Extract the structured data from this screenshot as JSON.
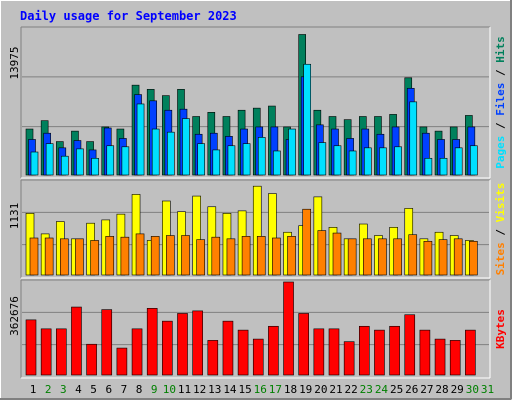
{
  "title": "Daily usage for September 2023",
  "colors": {
    "background": "#c0c0c0",
    "title": "#0000ff",
    "hits": "#00805c",
    "files": "#0040ff",
    "pages": "#00e0ff",
    "visits": "#ffff00",
    "sites": "#ff8000",
    "kbytes": "#ff0000"
  },
  "chart_data": [
    {
      "type": "bar",
      "title": "Daily usage for September 2023",
      "panel": "requests",
      "ylabel_parts": [
        "Pages",
        "Files",
        "Hits"
      ],
      "ymax_label": "13975",
      "ylim": [
        0,
        13975
      ],
      "grid": true,
      "categories": [
        "1",
        "2",
        "3",
        "4",
        "5",
        "6",
        "7",
        "8",
        "9",
        "10",
        "11",
        "12",
        "13",
        "14",
        "15",
        "16",
        "17",
        "18",
        "19",
        "20",
        "21",
        "22",
        "23",
        "24",
        "25",
        "26",
        "27",
        "28",
        "29",
        "30",
        "31"
      ],
      "series": [
        {
          "name": "Hits",
          "values": [
            4400,
            5200,
            3200,
            4200,
            3200,
            4600,
            4400,
            8600,
            8200,
            7600,
            8200,
            5600,
            6000,
            5600,
            6200,
            6400,
            6600,
            4600,
            13450,
            6200,
            5600,
            5300,
            5600,
            5600,
            5800,
            9300,
            4600,
            4200,
            4600,
            5700,
            null
          ]
        },
        {
          "name": "Files",
          "values": [
            3400,
            4000,
            2600,
            3300,
            2400,
            4500,
            3500,
            7700,
            7100,
            6200,
            6300,
            3900,
            4000,
            3700,
            4400,
            4600,
            4600,
            3400,
            9400,
            4800,
            4400,
            3500,
            4400,
            3900,
            4600,
            8300,
            4000,
            3400,
            3400,
            4600,
            null
          ]
        },
        {
          "name": "Pages",
          "values": [
            2200,
            3000,
            1800,
            2500,
            1600,
            2800,
            2700,
            6800,
            4400,
            4100,
            5400,
            3000,
            2400,
            2800,
            3000,
            3600,
            2300,
            4400,
            10600,
            3100,
            2800,
            2300,
            2600,
            2600,
            2700,
            7000,
            1600,
            1600,
            2600,
            2800,
            null
          ]
        }
      ]
    },
    {
      "type": "bar",
      "panel": "visitors",
      "ylabel_parts": [
        "Sites",
        "Visits"
      ],
      "ymax_label": "1131",
      "ylim": [
        0,
        1131
      ],
      "grid": true,
      "categories": [
        "1",
        "2",
        "3",
        "4",
        "5",
        "6",
        "7",
        "8",
        "9",
        "10",
        "11",
        "12",
        "13",
        "14",
        "15",
        "16",
        "17",
        "18",
        "19",
        "20",
        "21",
        "22",
        "23",
        "24",
        "25",
        "26",
        "27",
        "28",
        "29",
        "30",
        "31"
      ],
      "series": [
        {
          "name": "Visits",
          "values": [
            750,
            500,
            650,
            440,
            630,
            670,
            740,
            980,
            420,
            900,
            770,
            960,
            830,
            750,
            780,
            1080,
            990,
            520,
            600,
            950,
            580,
            440,
            620,
            480,
            580,
            810,
            440,
            520,
            480,
            420,
            null
          ]
        },
        {
          "name": "Sites",
          "values": [
            450,
            450,
            440,
            440,
            420,
            470,
            460,
            500,
            470,
            480,
            480,
            430,
            460,
            440,
            470,
            470,
            450,
            470,
            800,
            540,
            510,
            440,
            440,
            440,
            440,
            490,
            410,
            430,
            440,
            410,
            null
          ]
        }
      ]
    },
    {
      "type": "bar",
      "panel": "kbytes",
      "ylabel_parts": [
        "KBytes"
      ],
      "ymax_label": "362676",
      "ylim": [
        0,
        362676
      ],
      "grid": true,
      "categories": [
        "1",
        "2",
        "3",
        "4",
        "5",
        "6",
        "7",
        "8",
        "9",
        "10",
        "11",
        "12",
        "13",
        "14",
        "15",
        "16",
        "17",
        "18",
        "19",
        "20",
        "21",
        "22",
        "23",
        "24",
        "25",
        "26",
        "27",
        "28",
        "29",
        "30",
        "31"
      ],
      "series": [
        {
          "name": "KBytes",
          "values": [
            215000,
            180000,
            180000,
            265000,
            120000,
            255000,
            105000,
            180000,
            260000,
            210000,
            240000,
            250000,
            135000,
            210000,
            175000,
            140000,
            190000,
            362676,
            240000,
            180000,
            180000,
            130000,
            190000,
            175000,
            190000,
            235000,
            175000,
            140000,
            135000,
            175000,
            null
          ]
        }
      ]
    }
  ],
  "x_ticks": [
    {
      "label": "1",
      "weekend": false
    },
    {
      "label": "2",
      "weekend": true
    },
    {
      "label": "3",
      "weekend": true
    },
    {
      "label": "4",
      "weekend": false
    },
    {
      "label": "5",
      "weekend": false
    },
    {
      "label": "6",
      "weekend": false
    },
    {
      "label": "7",
      "weekend": false
    },
    {
      "label": "8",
      "weekend": false
    },
    {
      "label": "9",
      "weekend": true
    },
    {
      "label": "10",
      "weekend": true
    },
    {
      "label": "11",
      "weekend": false
    },
    {
      "label": "12",
      "weekend": false
    },
    {
      "label": "13",
      "weekend": false
    },
    {
      "label": "14",
      "weekend": false
    },
    {
      "label": "15",
      "weekend": false
    },
    {
      "label": "16",
      "weekend": true
    },
    {
      "label": "17",
      "weekend": true
    },
    {
      "label": "18",
      "weekend": false
    },
    {
      "label": "19",
      "weekend": false
    },
    {
      "label": "20",
      "weekend": false
    },
    {
      "label": "21",
      "weekend": false
    },
    {
      "label": "22",
      "weekend": false
    },
    {
      "label": "23",
      "weekend": true
    },
    {
      "label": "24",
      "weekend": true
    },
    {
      "label": "25",
      "weekend": false
    },
    {
      "label": "26",
      "weekend": false
    },
    {
      "label": "27",
      "weekend": false
    },
    {
      "label": "28",
      "weekend": false
    },
    {
      "label": "29",
      "weekend": false
    },
    {
      "label": "30",
      "weekend": true
    },
    {
      "label": "31",
      "weekend": true
    }
  ],
  "weekday_color": "#000000",
  "weekend_color": "#008000",
  "legend_separator": " / "
}
